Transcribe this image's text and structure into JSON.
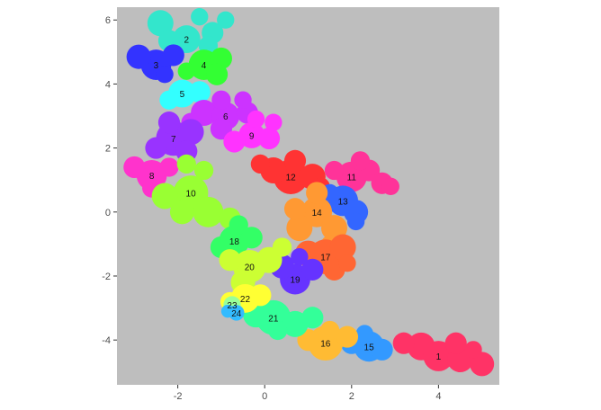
{
  "chart_data": {
    "type": "scatter",
    "title": "",
    "xlabel": "",
    "ylabel": "",
    "xlim": [
      -3.4,
      5.4
    ],
    "ylim": [
      -5.4,
      6.4
    ],
    "grid": false,
    "legend": "none",
    "panel_color": "#bebebe",
    "x_ticks": [
      {
        "value": -2,
        "label": "-2"
      },
      {
        "value": 0,
        "label": "0"
      },
      {
        "value": 2,
        "label": "2"
      },
      {
        "value": 4,
        "label": "4"
      }
    ],
    "y_ticks": [
      {
        "value": 6,
        "label": "6"
      },
      {
        "value": 4,
        "label": "4"
      },
      {
        "value": 2,
        "label": "2"
      },
      {
        "value": 0,
        "label": "0"
      },
      {
        "value": -2,
        "label": "-2"
      },
      {
        "value": -4,
        "label": "-4"
      }
    ],
    "regions": [
      {
        "label": "1",
        "color": "#ff3366",
        "lx": 4.0,
        "ly": -4.5,
        "blobs": [
          [
            3.6,
            -4.2,
            0.32
          ],
          [
            4.0,
            -4.5,
            0.35
          ],
          [
            4.5,
            -4.6,
            0.3
          ],
          [
            5.0,
            -4.75,
            0.28
          ],
          [
            3.2,
            -4.1,
            0.25
          ],
          [
            4.4,
            -4.1,
            0.25
          ],
          [
            4.8,
            -4.3,
            0.2
          ]
        ]
      },
      {
        "label": "2",
        "color": "#33e6cc",
        "lx": -1.8,
        "ly": 5.4,
        "blobs": [
          [
            -2.4,
            5.9,
            0.3
          ],
          [
            -1.8,
            5.4,
            0.32
          ],
          [
            -1.2,
            5.6,
            0.25
          ],
          [
            -1.3,
            5.2,
            0.22
          ],
          [
            -2.2,
            5.35,
            0.25
          ],
          [
            -0.9,
            6.0,
            0.2
          ],
          [
            -1.5,
            6.1,
            0.2
          ]
        ]
      },
      {
        "label": "3",
        "color": "#3333ff",
        "lx": -2.5,
        "ly": 4.6,
        "blobs": [
          [
            -2.5,
            4.6,
            0.35
          ],
          [
            -2.9,
            4.85,
            0.28
          ],
          [
            -2.1,
            4.9,
            0.25
          ],
          [
            -2.3,
            4.3,
            0.2
          ]
        ]
      },
      {
        "label": "4",
        "color": "#33ff33",
        "lx": -1.4,
        "ly": 4.6,
        "blobs": [
          [
            -1.4,
            4.6,
            0.35
          ],
          [
            -1.0,
            4.8,
            0.25
          ],
          [
            -1.1,
            4.3,
            0.25
          ],
          [
            -1.8,
            4.4,
            0.2
          ]
        ]
      },
      {
        "label": "5",
        "color": "#33ffff",
        "lx": -1.9,
        "ly": 3.7,
        "blobs": [
          [
            -1.9,
            3.7,
            0.32
          ],
          [
            -1.5,
            3.75,
            0.25
          ],
          [
            -2.2,
            3.5,
            0.22
          ]
        ]
      },
      {
        "label": "6",
        "color": "#cc33ff",
        "lx": -0.9,
        "ly": 3.0,
        "blobs": [
          [
            -1.4,
            3.1,
            0.3
          ],
          [
            -0.9,
            3.0,
            0.32
          ],
          [
            -0.4,
            3.1,
            0.25
          ],
          [
            -1.0,
            3.5,
            0.22
          ],
          [
            -1.0,
            2.6,
            0.25
          ],
          [
            -1.7,
            2.8,
            0.22
          ],
          [
            -0.5,
            3.5,
            0.2
          ]
        ]
      },
      {
        "label": "7",
        "color": "#9933ff",
        "lx": -2.1,
        "ly": 2.3,
        "blobs": [
          [
            -2.1,
            2.3,
            0.4
          ],
          [
            -1.7,
            2.5,
            0.3
          ],
          [
            -2.5,
            2.0,
            0.25
          ],
          [
            -1.8,
            1.9,
            0.25
          ],
          [
            -2.2,
            2.8,
            0.25
          ]
        ]
      },
      {
        "label": "8",
        "color": "#ff33cc",
        "lx": -2.6,
        "ly": 1.15,
        "blobs": [
          [
            -2.6,
            1.15,
            0.35
          ],
          [
            -3.0,
            1.4,
            0.25
          ],
          [
            -2.2,
            1.4,
            0.22
          ],
          [
            -2.6,
            0.75,
            0.22
          ]
        ]
      },
      {
        "label": "9",
        "color": "#ff33ff",
        "lx": -0.3,
        "ly": 2.4,
        "blobs": [
          [
            -0.3,
            2.4,
            0.3
          ],
          [
            0.1,
            2.3,
            0.25
          ],
          [
            -0.7,
            2.2,
            0.25
          ],
          [
            0.2,
            2.8,
            0.2
          ],
          [
            -0.2,
            2.9,
            0.2
          ]
        ]
      },
      {
        "label": "10",
        "color": "#99ff33",
        "lx": -1.7,
        "ly": 0.6,
        "blobs": [
          [
            -1.7,
            0.6,
            0.4
          ],
          [
            -2.3,
            0.5,
            0.3
          ],
          [
            -1.3,
            0.0,
            0.35
          ],
          [
            -0.8,
            -0.2,
            0.25
          ],
          [
            -1.9,
            0.0,
            0.28
          ],
          [
            -1.4,
            1.3,
            0.22
          ],
          [
            -1.8,
            1.5,
            0.22
          ]
        ]
      },
      {
        "label": "11",
        "color": "#ff3399",
        "lx": 2.0,
        "ly": 1.1,
        "blobs": [
          [
            2.0,
            1.1,
            0.35
          ],
          [
            2.4,
            1.3,
            0.25
          ],
          [
            2.7,
            0.9,
            0.25
          ],
          [
            1.6,
            1.3,
            0.22
          ],
          [
            2.2,
            1.6,
            0.22
          ],
          [
            2.9,
            0.8,
            0.2
          ]
        ]
      },
      {
        "label": "12",
        "color": "#ff3333",
        "lx": 0.6,
        "ly": 1.1,
        "blobs": [
          [
            0.6,
            1.1,
            0.4
          ],
          [
            0.2,
            1.3,
            0.3
          ],
          [
            1.1,
            1.1,
            0.3
          ],
          [
            0.7,
            1.6,
            0.25
          ],
          [
            1.3,
            0.8,
            0.2
          ],
          [
            -0.1,
            1.5,
            0.22
          ]
        ]
      },
      {
        "label": "13",
        "color": "#3366ff",
        "lx": 1.8,
        "ly": 0.35,
        "blobs": [
          [
            1.8,
            0.35,
            0.35
          ],
          [
            2.1,
            0.0,
            0.28
          ],
          [
            1.5,
            0.6,
            0.2
          ],
          [
            2.1,
            -0.3,
            0.2
          ]
        ]
      },
      {
        "label": "14",
        "color": "#ff9933",
        "lx": 1.2,
        "ly": 0.0,
        "blobs": [
          [
            1.2,
            0.0,
            0.35
          ],
          [
            0.8,
            -0.5,
            0.3
          ],
          [
            1.6,
            -0.5,
            0.3
          ],
          [
            1.2,
            0.6,
            0.25
          ],
          [
            0.7,
            0.1,
            0.25
          ],
          [
            1.5,
            -1.0,
            0.2
          ]
        ]
      },
      {
        "label": "15",
        "color": "#3399ff",
        "lx": 2.4,
        "ly": -4.2,
        "blobs": [
          [
            2.4,
            -4.2,
            0.35
          ],
          [
            2.0,
            -4.1,
            0.25
          ],
          [
            2.7,
            -4.3,
            0.25
          ],
          [
            2.3,
            -3.8,
            0.2
          ]
        ]
      },
      {
        "label": "16",
        "color": "#ffbb33",
        "lx": 1.4,
        "ly": -4.1,
        "blobs": [
          [
            1.4,
            -4.1,
            0.4
          ],
          [
            1.9,
            -3.9,
            0.25
          ],
          [
            1.0,
            -4.0,
            0.25
          ],
          [
            1.5,
            -3.7,
            0.22
          ]
        ]
      },
      {
        "label": "17",
        "color": "#ff6633",
        "lx": 1.4,
        "ly": -1.4,
        "blobs": [
          [
            1.4,
            -1.4,
            0.4
          ],
          [
            1.8,
            -1.1,
            0.3
          ],
          [
            1.0,
            -1.3,
            0.3
          ],
          [
            1.6,
            -1.8,
            0.25
          ],
          [
            1.9,
            -1.6,
            0.2
          ]
        ]
      },
      {
        "label": "18",
        "color": "#33ff66",
        "lx": -0.7,
        "ly": -0.9,
        "blobs": [
          [
            -0.7,
            -0.9,
            0.35
          ],
          [
            -0.3,
            -0.8,
            0.25
          ],
          [
            -1.0,
            -1.1,
            0.25
          ],
          [
            -0.6,
            -0.4,
            0.22
          ]
        ]
      },
      {
        "label": "19",
        "color": "#6633ff",
        "lx": 0.7,
        "ly": -2.1,
        "blobs": [
          [
            0.7,
            -2.1,
            0.35
          ],
          [
            0.4,
            -1.7,
            0.28
          ],
          [
            1.1,
            -1.8,
            0.25
          ],
          [
            0.8,
            -1.4,
            0.2
          ]
        ]
      },
      {
        "label": "20",
        "color": "#ccff33",
        "lx": -0.35,
        "ly": -1.7,
        "blobs": [
          [
            -0.35,
            -1.7,
            0.38
          ],
          [
            0.1,
            -1.5,
            0.3
          ],
          [
            -0.8,
            -1.5,
            0.25
          ],
          [
            -0.5,
            -2.2,
            0.28
          ],
          [
            0.4,
            -1.1,
            0.22
          ]
        ]
      },
      {
        "label": "21",
        "color": "#33ff99",
        "lx": 0.2,
        "ly": -3.3,
        "blobs": [
          [
            0.2,
            -3.3,
            0.4
          ],
          [
            -0.2,
            -3.2,
            0.3
          ],
          [
            0.7,
            -3.5,
            0.3
          ],
          [
            1.1,
            -3.3,
            0.25
          ],
          [
            0.3,
            -3.7,
            0.22
          ]
        ]
      },
      {
        "label": "22",
        "color": "#ffff33",
        "lx": -0.45,
        "ly": -2.7,
        "blobs": [
          [
            -0.45,
            -2.7,
            0.33
          ],
          [
            -0.1,
            -2.6,
            0.25
          ],
          [
            -0.8,
            -2.8,
            0.22
          ]
        ]
      },
      {
        "label": "23",
        "color": "#99ff99",
        "lx": -0.75,
        "ly": -2.9,
        "blobs": [
          [
            -0.75,
            -2.9,
            0.2
          ]
        ]
      },
      {
        "label": "24",
        "color": "#33bbff",
        "lx": -0.65,
        "ly": -3.15,
        "blobs": [
          [
            -0.65,
            -3.15,
            0.18
          ],
          [
            -0.85,
            -3.1,
            0.15
          ]
        ]
      }
    ]
  }
}
